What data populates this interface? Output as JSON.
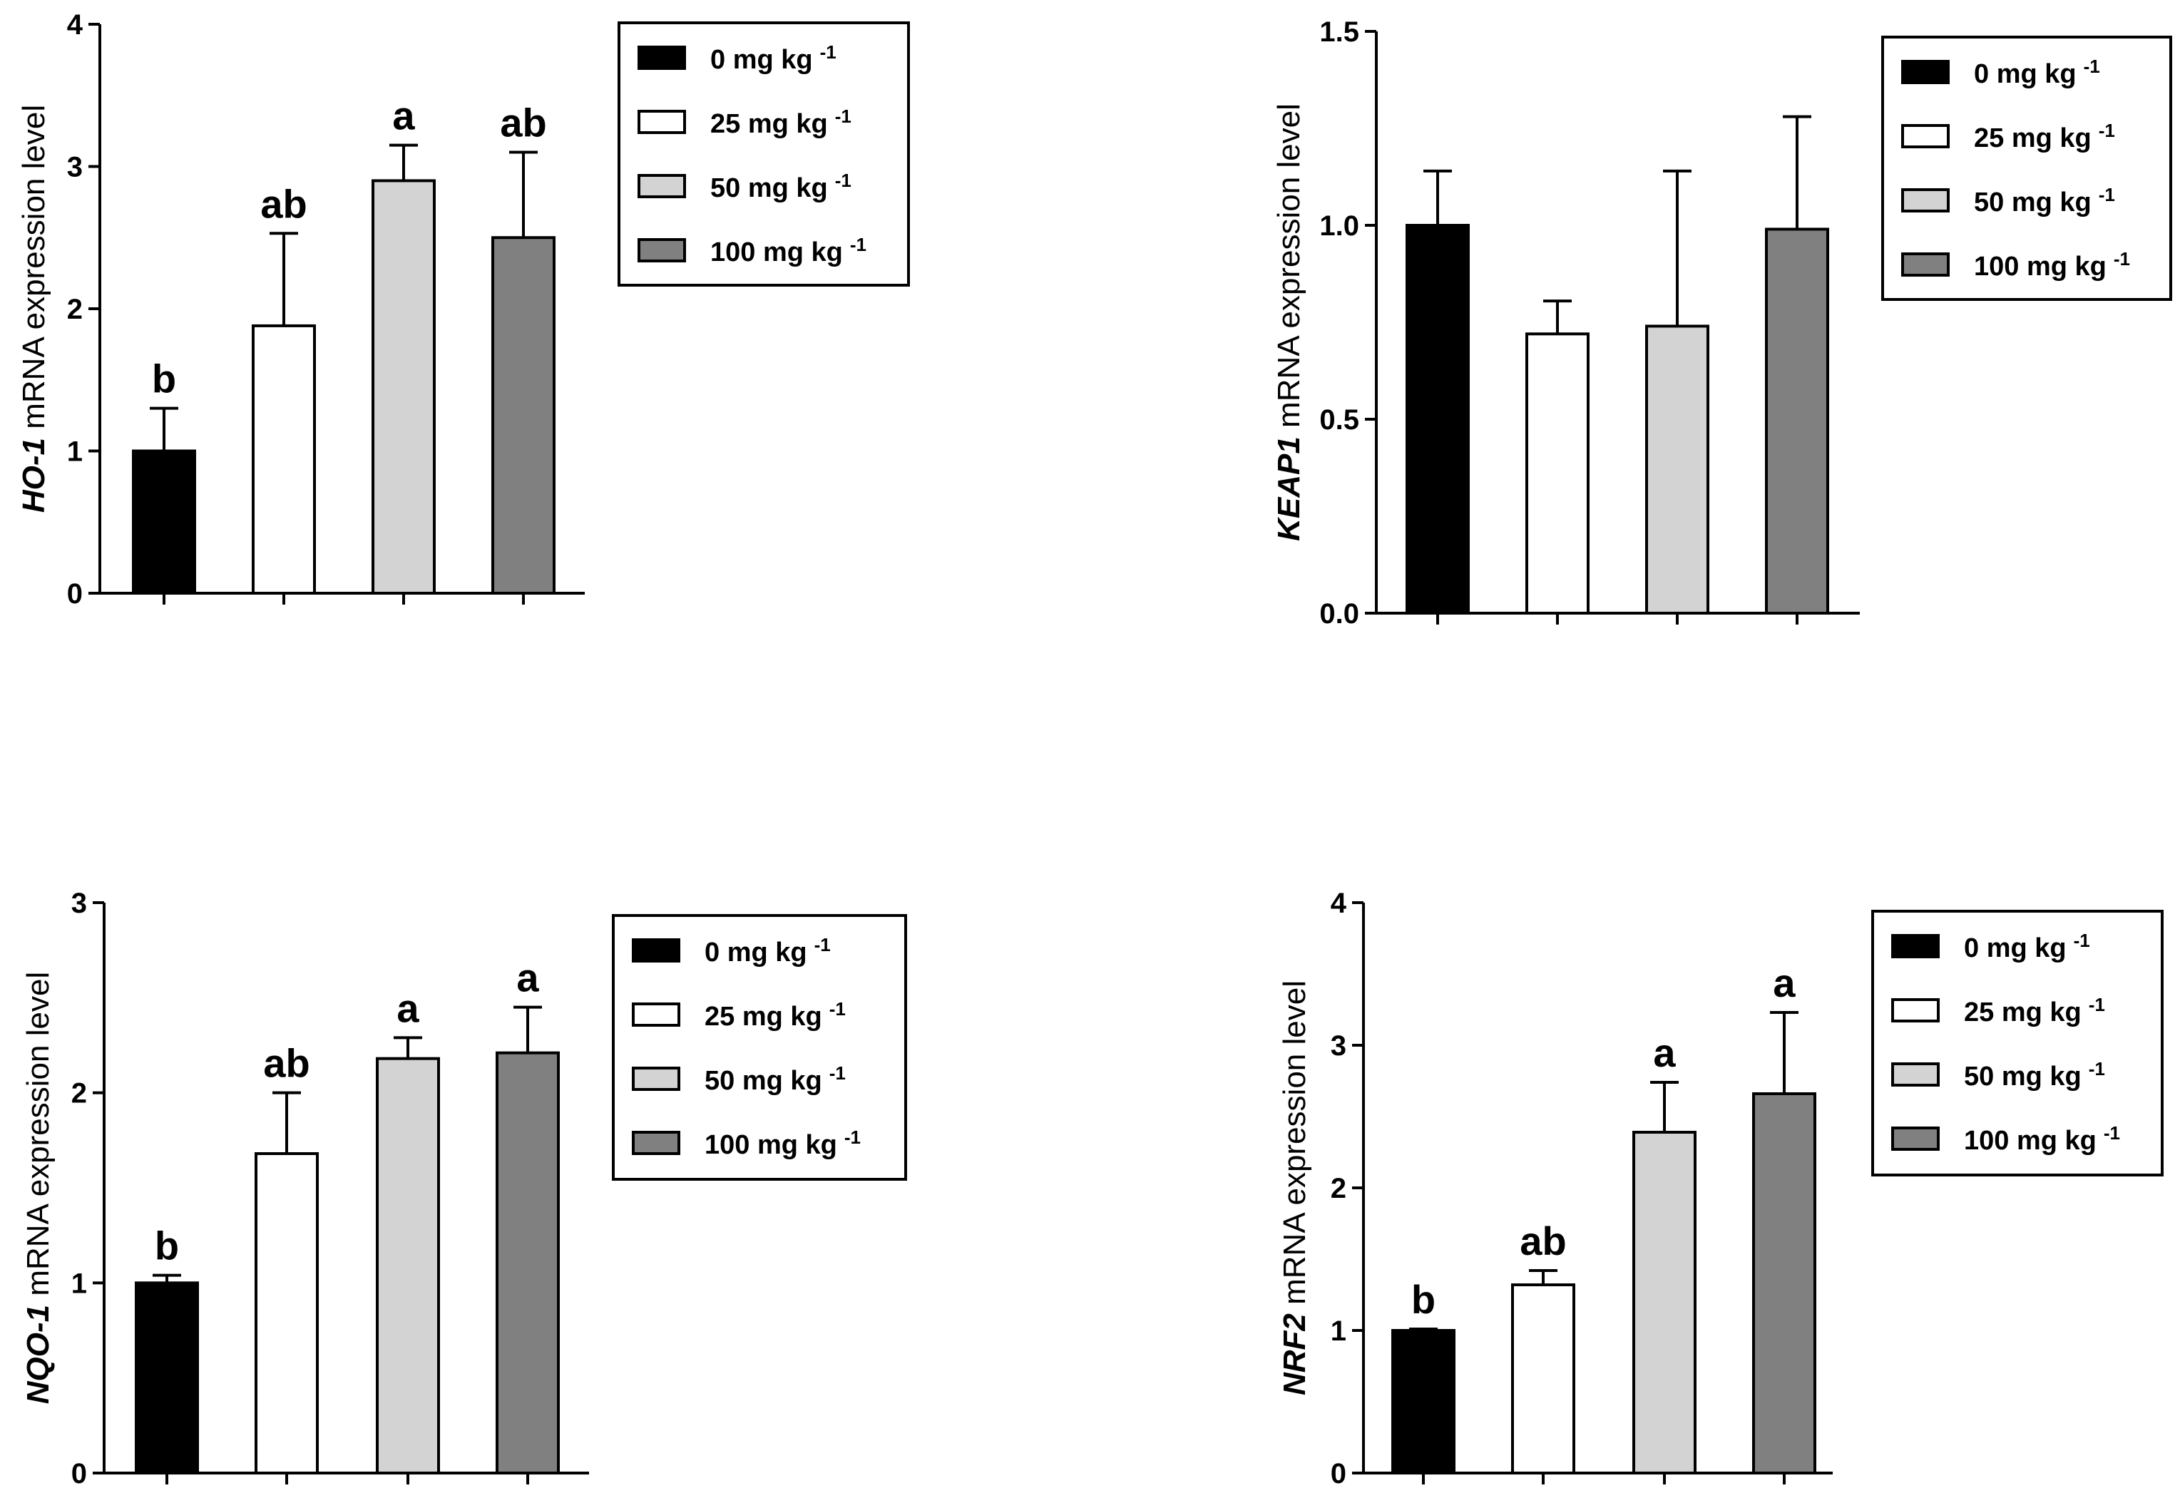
{
  "figure": {
    "legend_labels": [
      {
        "base": "0 mg kg",
        "exp": "-1"
      },
      {
        "base": "25 mg kg",
        "exp": "-1"
      },
      {
        "base": "50 mg kg",
        "exp": "-1"
      },
      {
        "base": "100 mg kg",
        "exp": "-1"
      }
    ],
    "colors": [
      "#000000",
      "#ffffff",
      "#d3d3d3",
      "#808080"
    ]
  },
  "chart_data": [
    {
      "type": "bar",
      "title": "",
      "gene": "HO-1",
      "ylabel_rest": " mRNA expression level",
      "categories": [
        "0 mg kg -1",
        "25 mg kg -1",
        "50 mg kg -1",
        "100 mg kg -1"
      ],
      "values": [
        1.0,
        1.88,
        2.9,
        2.5
      ],
      "errors": [
        0.3,
        0.65,
        0.25,
        0.6
      ],
      "significance": [
        "b",
        "ab",
        "a",
        "ab"
      ],
      "ylim": [
        0,
        4
      ],
      "yticks": [
        0,
        1,
        2,
        3,
        4
      ],
      "ytick_labels": [
        "0",
        "1",
        "2",
        "3",
        "4"
      ],
      "legend": "top-right"
    },
    {
      "type": "bar",
      "title": "",
      "gene": "KEAP1",
      "ylabel_rest": " mRNA expression level",
      "categories": [
        "0 mg kg -1",
        "25 mg kg -1",
        "50 mg kg -1",
        "100 mg kg -1"
      ],
      "values": [
        1.0,
        0.72,
        0.74,
        0.99
      ],
      "errors": [
        0.14,
        0.085,
        0.4,
        0.29
      ],
      "significance": [
        "",
        "",
        "",
        ""
      ],
      "ylim": [
        0,
        1.5
      ],
      "yticks": [
        0,
        0.5,
        1.0,
        1.5
      ],
      "ytick_labels": [
        "0.0",
        "0.5",
        "1.0",
        "1.5"
      ],
      "legend": "top-right"
    },
    {
      "type": "bar",
      "title": "",
      "gene": "NQO-1",
      "ylabel_rest": " mRNA expression level",
      "categories": [
        "0 mg kg -1",
        "25 mg kg -1",
        "50 mg kg -1",
        "100 mg kg -1"
      ],
      "values": [
        1.0,
        1.68,
        2.18,
        2.21
      ],
      "errors": [
        0.04,
        0.32,
        0.11,
        0.24
      ],
      "significance": [
        "b",
        "ab",
        "a",
        "a"
      ],
      "ylim": [
        0,
        3
      ],
      "yticks": [
        0,
        1,
        2,
        3
      ],
      "ytick_labels": [
        "0",
        "1",
        "2",
        "3"
      ],
      "legend": "top-right"
    },
    {
      "type": "bar",
      "title": "",
      "gene": "NRF2",
      "ylabel_rest": " mRNA expression level",
      "categories": [
        "0 mg kg -1",
        "25 mg kg -1",
        "50 mg kg -1",
        "100 mg kg -1"
      ],
      "values": [
        1.0,
        1.32,
        2.39,
        2.66
      ],
      "errors": [
        0.01,
        0.1,
        0.35,
        0.57
      ],
      "significance": [
        "b",
        "ab",
        "a",
        "a"
      ],
      "ylim": [
        0,
        4
      ],
      "yticks": [
        0,
        1,
        2,
        3,
        4
      ],
      "ytick_labels": [
        "0",
        "1",
        "2",
        "3",
        "4"
      ],
      "legend": "top-right"
    }
  ]
}
